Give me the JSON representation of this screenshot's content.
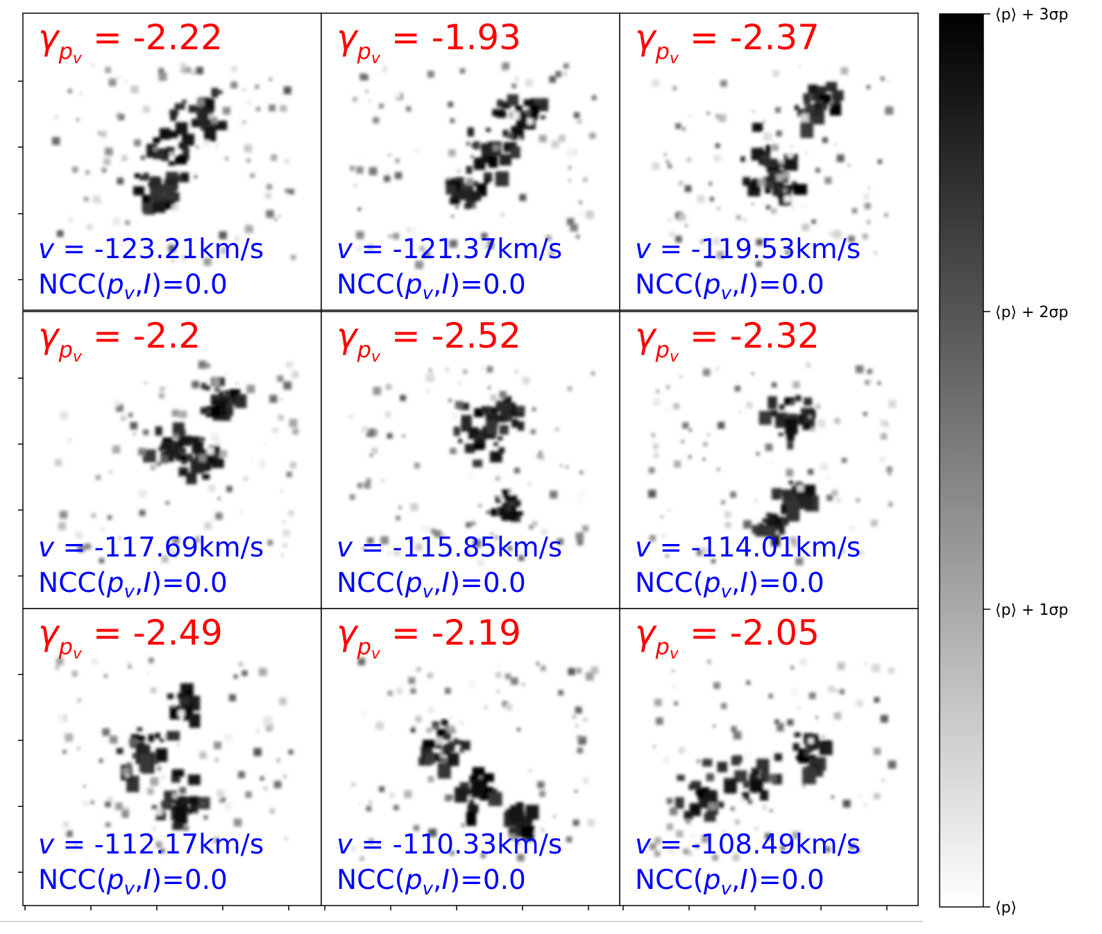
{
  "chart_data": {
    "type": "heatmap",
    "colormap": "gray_r",
    "layout": "3x3 grid of channel maps",
    "panels": [
      {
        "gamma": "-2.22",
        "velocity": "-123.21km/s",
        "ncc": "0.0"
      },
      {
        "gamma": "-1.93",
        "velocity": "-121.37km/s",
        "ncc": "0.0"
      },
      {
        "gamma": "-2.37",
        "velocity": "-119.53km/s",
        "ncc": "0.0"
      },
      {
        "gamma": "-2.2",
        "velocity": "-117.69km/s",
        "ncc": "0.0"
      },
      {
        "gamma": "-2.52",
        "velocity": "-115.85km/s",
        "ncc": "0.0"
      },
      {
        "gamma": "-2.32",
        "velocity": "-114.01km/s",
        "ncc": "0.0"
      },
      {
        "gamma": "-2.49",
        "velocity": "-112.17km/s",
        "ncc": "0.0"
      },
      {
        "gamma": "-2.19",
        "velocity": "-110.33km/s",
        "ncc": "0.0"
      },
      {
        "gamma": "-2.05",
        "velocity": "-108.49km/s",
        "ncc": "0.0"
      }
    ],
    "colorbar": {
      "ticks": [
        "⟨p⟩",
        "⟨p⟩ + 1σp",
        "⟨p⟩ + 2σp",
        "⟨p⟩ + 3σp"
      ],
      "low_color": "#ffffff",
      "high_color": "#000000"
    },
    "colors": {
      "gamma_text": "#ff0000",
      "label_text": "#0000ff"
    }
  }
}
